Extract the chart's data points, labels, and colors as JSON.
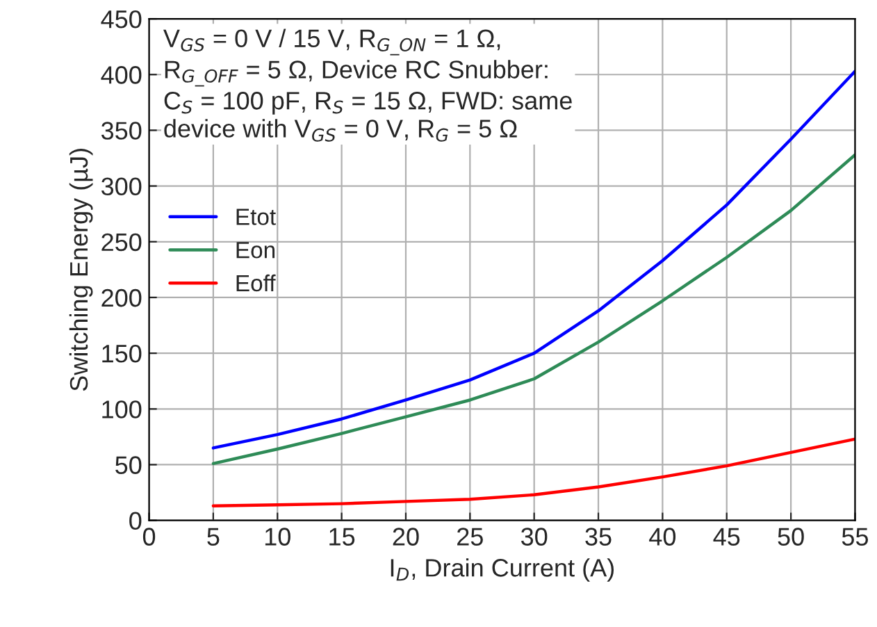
{
  "chart_data": {
    "type": "line",
    "xlabel": "I$_{D}$, Drain Current (A)",
    "ylabel": "Switching Energy (µJ)",
    "x": [
      5,
      10,
      15,
      20,
      25,
      30,
      35,
      40,
      45,
      50,
      55
    ],
    "series": [
      {
        "name": "Etot",
        "color": "#0000ff",
        "values": [
          65,
          77,
          91,
          108,
          126,
          150,
          188,
          233,
          283,
          342,
          403
        ]
      },
      {
        "name": "Eon",
        "color": "#2e8b57",
        "values": [
          51,
          64,
          78,
          93,
          108,
          127,
          160,
          197,
          236,
          278,
          328
        ]
      },
      {
        "name": "Eoff",
        "color": "#ff0000",
        "values": [
          13,
          14,
          15,
          17,
          19,
          23,
          30,
          39,
          49,
          61,
          73
        ]
      }
    ],
    "xlim": [
      0,
      55
    ],
    "xticks": [
      0,
      5,
      10,
      15,
      20,
      25,
      30,
      35,
      40,
      45,
      50,
      55
    ],
    "ylim": [
      0,
      450
    ],
    "yticks": [
      0,
      50,
      100,
      150,
      200,
      250,
      300,
      350,
      400,
      450
    ],
    "grid": true,
    "legend": "center left",
    "marker": "none",
    "line_style": "solid",
    "annotations": [
      "V$_{GS}$ = 0 V / 15 V, R$_{G_ON}$ = 1 Ω,\nR$_{G_OFF}$ = 5 Ω, Device RC Snubber:\nC$_{S}$ = 100 pF, R$_{S}$ = 15 Ω, FWD: same\ndevice with V$_{GS}$ = 0 V, R$_{G}$ = 5 Ω"
    ]
  }
}
